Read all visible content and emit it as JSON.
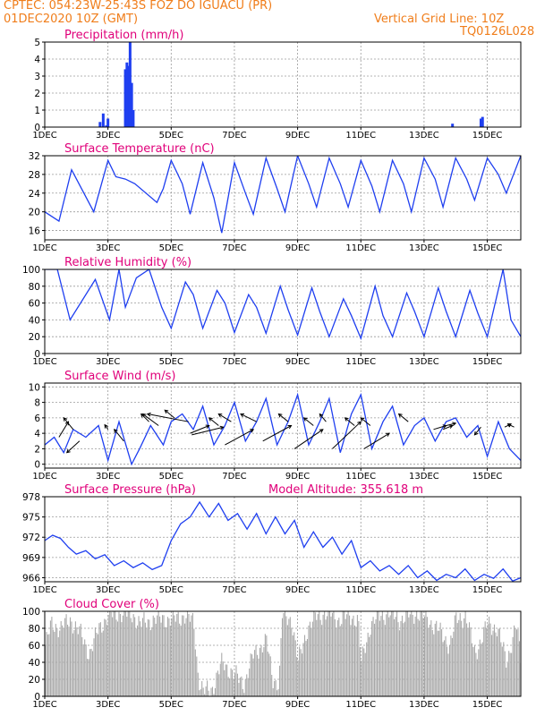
{
  "header": {
    "line1": "CPTEC:   054:23W-25:43S  FOZ DO IGUACU (PR)",
    "line2": "01DEC2020 10Z (GMT)",
    "grid_note": "Vertical Grid Line: 10Z",
    "code": "TQ0126L028"
  },
  "colors": {
    "header": "#f07d1a",
    "title": "#e0007a",
    "series": "#1f3ff0",
    "bars": "#1f3ff0",
    "cloud": "#a8a8a8",
    "grid": "#9a9a9a"
  },
  "chart_data": [
    {
      "type": "bar",
      "title": "Precipitation  (mm/h)",
      "ylim": [
        0,
        5
      ],
      "yticks": [
        0,
        1,
        2,
        3,
        4,
        5
      ],
      "xticks": [
        "1DEC",
        "3DEC",
        "5DEC",
        "7DEC",
        "9DEC",
        "11DEC",
        "13DEC",
        "15DEC"
      ],
      "xlim_days": [
        1,
        16.06
      ],
      "days": [
        2.75,
        2.85,
        2.95,
        3.0,
        3.55,
        3.6,
        3.65,
        3.7,
        3.75,
        3.8,
        13.9,
        14.8,
        14.85
      ],
      "values": [
        0.3,
        0.8,
        0.1,
        0.5,
        3.4,
        3.8,
        3.6,
        5.0,
        2.6,
        1.0,
        0.2,
        0.5,
        0.6
      ]
    },
    {
      "type": "line",
      "title": "Surface Temperature (nC)",
      "ylim": [
        14,
        32
      ],
      "yticks": [
        16,
        20,
        24,
        28,
        32
      ],
      "xticks": [
        "1DEC",
        "3DEC",
        "5DEC",
        "7DEC",
        "9DEC",
        "11DEC",
        "13DEC",
        "15DEC"
      ],
      "xlim_days": [
        1,
        16.06
      ],
      "x": [
        1.0,
        1.45,
        1.85,
        2.55,
        3.0,
        3.25,
        3.55,
        3.85,
        4.55,
        4.75,
        5.0,
        5.35,
        5.6,
        6.0,
        6.35,
        6.6,
        7.0,
        7.35,
        7.6,
        8.0,
        8.35,
        8.6,
        9.0,
        9.35,
        9.6,
        10.0,
        10.35,
        10.6,
        11.0,
        11.35,
        11.6,
        12.0,
        12.35,
        12.6,
        13.0,
        13.35,
        13.6,
        14.0,
        14.35,
        14.6,
        15.0,
        15.35,
        15.6,
        16.06
      ],
      "y": [
        20,
        18,
        29,
        20,
        31,
        27.5,
        27,
        26,
        22,
        25,
        31,
        26,
        19.5,
        30.5,
        23,
        15.5,
        30.5,
        24,
        19.5,
        31.5,
        25,
        20,
        32,
        26,
        21,
        31.5,
        26,
        21,
        31,
        25.5,
        20,
        31,
        26,
        20,
        31.5,
        27,
        21,
        31.5,
        27,
        22.5,
        31.5,
        28,
        24,
        32
      ]
    },
    {
      "type": "line",
      "title": "Relative Humidity  (%)",
      "ylim": [
        0,
        100
      ],
      "yticks": [
        0,
        20,
        40,
        60,
        80,
        100
      ],
      "xticks": [
        "1DEC",
        "3DEC",
        "5DEC",
        "7DEC",
        "9DEC",
        "11DEC",
        "13DEC",
        "15DEC"
      ],
      "xlim_days": [
        1,
        16.06
      ],
      "x": [
        1.0,
        1.4,
        1.8,
        2.6,
        3.05,
        3.35,
        3.55,
        3.9,
        4.3,
        4.7,
        5.0,
        5.45,
        5.7,
        6.0,
        6.45,
        6.7,
        7.0,
        7.45,
        7.7,
        8.0,
        8.45,
        8.7,
        9.0,
        9.45,
        9.7,
        10.0,
        10.45,
        10.7,
        11.0,
        11.45,
        11.7,
        12.0,
        12.45,
        12.7,
        13.0,
        13.45,
        13.7,
        14.0,
        14.45,
        14.7,
        15.0,
        15.5,
        15.75,
        16.06
      ],
      "y": [
        100,
        100,
        40,
        88,
        40,
        100,
        55,
        90,
        100,
        55,
        30,
        85,
        70,
        30,
        75,
        60,
        25,
        70,
        55,
        24,
        80,
        52,
        22,
        78,
        50,
        20,
        65,
        45,
        18,
        80,
        45,
        20,
        72,
        50,
        20,
        78,
        50,
        20,
        75,
        48,
        20,
        100,
        40,
        20
      ]
    },
    {
      "type": "line",
      "title": "Surface Wind (m/s)",
      "ylim": [
        -0.5,
        10.5
      ],
      "yticks": [
        0,
        2,
        4,
        6,
        8,
        10
      ],
      "xticks": [
        "1DEC",
        "3DEC",
        "5DEC",
        "7DEC",
        "9DEC",
        "11DEC",
        "13DEC",
        "15DEC"
      ],
      "xlim_days": [
        1,
        16.06
      ],
      "x": [
        1.0,
        1.3,
        1.6,
        1.9,
        2.3,
        2.7,
        3.0,
        3.35,
        3.75,
        4.0,
        4.35,
        4.75,
        5.0,
        5.35,
        5.7,
        6.0,
        6.35,
        6.7,
        7.0,
        7.35,
        7.7,
        8.0,
        8.35,
        8.7,
        9.0,
        9.35,
        9.7,
        10.0,
        10.35,
        10.7,
        11.0,
        11.35,
        11.7,
        12.0,
        12.35,
        12.7,
        13.0,
        13.35,
        13.7,
        14.0,
        14.35,
        14.7,
        15.0,
        15.35,
        15.7,
        16.06
      ],
      "y": [
        2.5,
        3.5,
        1.5,
        4.5,
        3.5,
        5.0,
        0.5,
        5.5,
        0.0,
        2.0,
        5.0,
        2.5,
        5.5,
        6.5,
        4.5,
        7.5,
        2.5,
        5.0,
        8.0,
        3.0,
        5.5,
        8.5,
        2.5,
        5.5,
        9.0,
        2.5,
        5.5,
        8.5,
        1.5,
        6.5,
        9.0,
        2.0,
        5.5,
        7.5,
        2.5,
        5.0,
        6.0,
        3.0,
        5.5,
        6.0,
        3.5,
        5.0,
        1.0,
        5.5,
        2.0,
        0.5
      ],
      "vectors": [
        {
          "x": 1.45,
          "y": 3.5,
          "dx": 0.3,
          "dy": 2.0
        },
        {
          "x": 1.9,
          "y": 4.5,
          "dx": -0.3,
          "dy": 1.5
        },
        {
          "x": 2.1,
          "y": 3.0,
          "dx": -0.4,
          "dy": -1.5
        },
        {
          "x": 3.0,
          "y": 4.5,
          "dx": -0.1,
          "dy": 0.6
        },
        {
          "x": 3.5,
          "y": 3.0,
          "dx": -0.3,
          "dy": 1.5
        },
        {
          "x": 4.3,
          "y": 5.5,
          "dx": -0.25,
          "dy": 1.0
        },
        {
          "x": 4.6,
          "y": 5.0,
          "dx": -0.5,
          "dy": 1.5
        },
        {
          "x": 5.1,
          "y": 6.0,
          "dx": -0.3,
          "dy": 1.0
        },
        {
          "x": 5.55,
          "y": 5.5,
          "dx": -1.3,
          "dy": 1.0
        },
        {
          "x": 5.6,
          "y": 4.0,
          "dx": 0.6,
          "dy": 1.0
        },
        {
          "x": 5.65,
          "y": 3.8,
          "dx": 1.0,
          "dy": 1.0
        },
        {
          "x": 6.5,
          "y": 5.0,
          "dx": -0.3,
          "dy": 1.0
        },
        {
          "x": 6.9,
          "y": 5.5,
          "dx": -0.4,
          "dy": 1.0
        },
        {
          "x": 6.7,
          "y": 2.5,
          "dx": 0.9,
          "dy": 2.0
        },
        {
          "x": 7.7,
          "y": 5.5,
          "dx": -0.5,
          "dy": 1.0
        },
        {
          "x": 7.9,
          "y": 3.0,
          "dx": 0.9,
          "dy": 2.0
        },
        {
          "x": 8.7,
          "y": 5.5,
          "dx": -0.3,
          "dy": 1.0
        },
        {
          "x": 8.9,
          "y": 2.0,
          "dx": 0.9,
          "dy": 2.5
        },
        {
          "x": 9.5,
          "y": 5.0,
          "dx": -0.3,
          "dy": 1.0
        },
        {
          "x": 9.9,
          "y": 5.5,
          "dx": -0.2,
          "dy": 1.0
        },
        {
          "x": 10.1,
          "y": 2.0,
          "dx": 0.9,
          "dy": 3.5
        },
        {
          "x": 10.8,
          "y": 5.0,
          "dx": -0.3,
          "dy": 1.0
        },
        {
          "x": 11.3,
          "y": 5.0,
          "dx": -0.3,
          "dy": 1.0
        },
        {
          "x": 11.1,
          "y": 2.0,
          "dx": 0.8,
          "dy": 2.0
        },
        {
          "x": 12.5,
          "y": 5.5,
          "dx": -0.3,
          "dy": 1.0
        },
        {
          "x": 13.3,
          "y": 4.5,
          "dx": 0.4,
          "dy": 0.5
        },
        {
          "x": 13.6,
          "y": 4.5,
          "dx": 0.3,
          "dy": 0.5
        },
        {
          "x": 13.7,
          "y": 5.0,
          "dx": 0.3,
          "dy": 0.3
        },
        {
          "x": 14.8,
          "y": 4.8,
          "dx": -0.2,
          "dy": -1.0
        },
        {
          "x": 15.55,
          "y": 4.8,
          "dx": 0.2,
          "dy": 0.4
        },
        {
          "x": 15.85,
          "y": 4.8,
          "dx": -0.2,
          "dy": 0.4
        }
      ]
    },
    {
      "type": "line",
      "title": "Surface Pressure (hPa)",
      "annotation": "Model Altitude: 355.618  m",
      "ylim": [
        965.4,
        978
      ],
      "yticks": [
        966,
        969,
        972,
        975,
        978
      ],
      "xticks": [
        "1DEC",
        "3DEC",
        "5DEC",
        "7DEC",
        "9DEC",
        "11DEC",
        "13DEC",
        "15DEC"
      ],
      "xlim_days": [
        1,
        16.06
      ],
      "x": [
        1.0,
        1.25,
        1.5,
        1.75,
        2.0,
        2.3,
        2.6,
        2.9,
        3.2,
        3.5,
        3.8,
        4.1,
        4.4,
        4.7,
        5.0,
        5.3,
        5.6,
        5.9,
        6.2,
        6.5,
        6.8,
        7.1,
        7.4,
        7.7,
        8.0,
        8.3,
        8.6,
        8.9,
        9.2,
        9.5,
        9.8,
        10.1,
        10.4,
        10.7,
        11.0,
        11.3,
        11.6,
        11.9,
        12.2,
        12.5,
        12.8,
        13.1,
        13.4,
        13.7,
        14.0,
        14.3,
        14.6,
        14.9,
        15.2,
        15.5,
        15.8,
        16.06
      ],
      "y": [
        971.5,
        972.3,
        971.8,
        970.5,
        969.5,
        970.0,
        968.8,
        969.4,
        967.8,
        968.5,
        967.5,
        968.2,
        967.2,
        967.8,
        971.5,
        974.0,
        975.0,
        977.2,
        975.0,
        977.0,
        974.5,
        975.5,
        973.2,
        975.5,
        972.5,
        975.0,
        972.5,
        974.5,
        970.5,
        972.8,
        970.5,
        972.0,
        969.5,
        971.5,
        967.5,
        968.5,
        967.0,
        967.8,
        966.5,
        967.8,
        966.0,
        967.0,
        965.6,
        966.5,
        966.0,
        967.3,
        965.6,
        966.5,
        965.9,
        967.3,
        965.5,
        966.0
      ]
    },
    {
      "type": "bar",
      "title": "Cloud Cover (%)",
      "ylim": [
        0,
        100
      ],
      "yticks": [
        0,
        20,
        40,
        60,
        80,
        100
      ],
      "xticks": [
        "1DEC",
        "3DEC",
        "5DEC",
        "7DEC",
        "9DEC",
        "11DEC",
        "13DEC",
        "15DEC"
      ],
      "xlim_days": [
        1,
        16.06
      ],
      "step_days": 0.04167,
      "profile_x": [
        1.0,
        1.2,
        1.5,
        1.8,
        2.1,
        2.4,
        2.5,
        2.7,
        3.0,
        3.4,
        3.8,
        4.0,
        4.4,
        4.7,
        5.0,
        5.4,
        5.7,
        5.85,
        6.0,
        6.3,
        6.6,
        7.0,
        7.3,
        7.6,
        8.0,
        8.2,
        8.4,
        8.5,
        8.8,
        9.0,
        9.3,
        9.6,
        10.0,
        10.3,
        10.6,
        10.9,
        11.0,
        11.3,
        11.6,
        11.9,
        12.2,
        12.5,
        12.8,
        13.1,
        13.4,
        13.8,
        14.0,
        14.3,
        14.6,
        15.0,
        15.3,
        15.6,
        15.9,
        16.06
      ],
      "profile_y": [
        60,
        85,
        80,
        90,
        75,
        50,
        60,
        80,
        95,
        98,
        95,
        85,
        90,
        92,
        90,
        95,
        88,
        20,
        5,
        10,
        40,
        25,
        15,
        50,
        65,
        20,
        15,
        95,
        90,
        40,
        80,
        95,
        98,
        90,
        95,
        90,
        40,
        85,
        95,
        98,
        90,
        95,
        98,
        90,
        80,
        60,
        90,
        95,
        50,
        85,
        80,
        40,
        85,
        40
      ]
    }
  ]
}
